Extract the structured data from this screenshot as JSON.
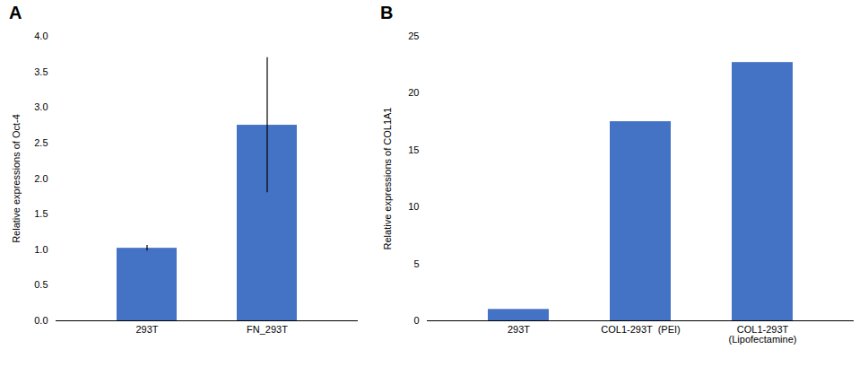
{
  "chart_data": [
    {
      "type": "bar",
      "title": "A",
      "categories": [
        "293T",
        "FN_293T"
      ],
      "values": [
        1.02,
        2.75
      ],
      "errors": [
        0.04,
        0.95
      ],
      "ylabel": "Relative expressions of Oct-4",
      "ylim": [
        0,
        4
      ],
      "yticks": [
        {
          "value": 0,
          "label": "0.0"
        },
        0.5,
        {
          "value": 1.0,
          "label": "1.0"
        },
        1.5,
        {
          "value": 2.0,
          "label": "2.0"
        },
        2.5,
        {
          "value": 3.0,
          "label": "3.0"
        },
        3.5,
        {
          "value": 4.0,
          "label": "4.0"
        }
      ],
      "color": "#4472c4",
      "grid": false
    },
    {
      "type": "bar",
      "title": "B",
      "categories": [
        "293T",
        "COL1-293T  (PEI)",
        "COL1-293T\n(Lipofectamine)"
      ],
      "values": [
        1.0,
        17.5,
        22.7
      ],
      "ylabel": "Relative expressions of COL1A1",
      "ylim": [
        0,
        25
      ],
      "yticks": [
        0,
        5,
        10,
        15,
        20,
        25
      ],
      "color": "#4472c4",
      "grid": false
    }
  ]
}
